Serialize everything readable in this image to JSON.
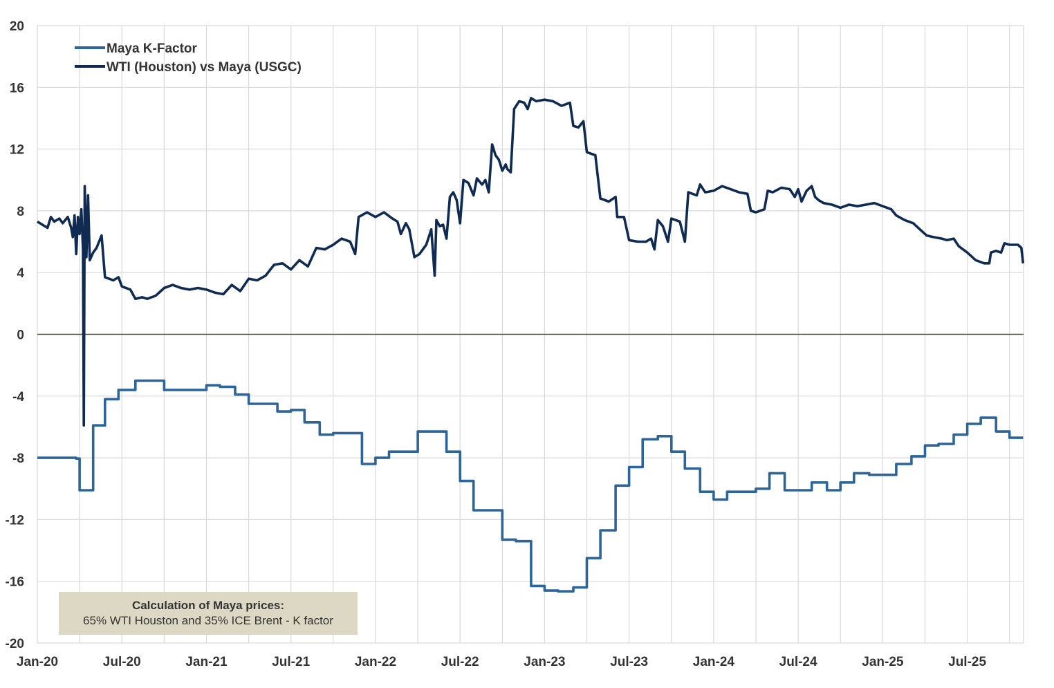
{
  "colors": {
    "k_factor": "#2e6599",
    "wti_maya": "#0f2b52",
    "grid": "#d9d9d9",
    "zero_line": "#5a4a3a",
    "note_bg": "#ddd8c4",
    "text": "#333333"
  },
  "note": {
    "title": "Calculation of Maya prices:",
    "body": "65% WTI Houston and 35% ICE Brent - K factor"
  },
  "chart_data": {
    "type": "line",
    "title": "",
    "xlabel": "",
    "ylabel": "",
    "ylim": [
      -20,
      20
    ],
    "y_ticks": [
      20,
      16,
      12,
      8,
      4,
      0,
      -4,
      -8,
      -12,
      -16,
      -20
    ],
    "x_range": [
      2020.0,
      2025.833
    ],
    "x_tick_values": [
      2020.0,
      2020.5,
      2021.0,
      2021.5,
      2022.0,
      2022.5,
      2023.0,
      2023.5,
      2024.0,
      2024.5,
      2025.0,
      2025.5
    ],
    "x_tick_labels": [
      "Jan-20",
      "Jul-20",
      "Jan-21",
      "Jul-21",
      "Jan-22",
      "Jul-22",
      "Jan-23",
      "Jul-23",
      "Jan-24",
      "Jul-24",
      "Jan-25",
      "Jul-25"
    ],
    "legend": {
      "position": "top-left",
      "entries": [
        "Maya K-Factor",
        "WTI (Houston) vs Maya (USGC)"
      ]
    },
    "series": [
      {
        "name": "Maya K-Factor",
        "step": true,
        "points": [
          [
            2020.0,
            -8.0
          ],
          [
            2020.23,
            -8.05
          ],
          [
            2020.25,
            -10.1
          ],
          [
            2020.33,
            -5.9
          ],
          [
            2020.4,
            -4.2
          ],
          [
            2020.48,
            -3.6
          ],
          [
            2020.58,
            -3.0
          ],
          [
            2020.75,
            -3.6
          ],
          [
            2021.0,
            -3.3
          ],
          [
            2021.08,
            -3.4
          ],
          [
            2021.17,
            -3.9
          ],
          [
            2021.25,
            -4.5
          ],
          [
            2021.42,
            -5.0
          ],
          [
            2021.5,
            -4.9
          ],
          [
            2021.58,
            -5.7
          ],
          [
            2021.67,
            -6.5
          ],
          [
            2021.75,
            -6.4
          ],
          [
            2021.92,
            -8.4
          ],
          [
            2022.0,
            -8.0
          ],
          [
            2022.08,
            -7.6
          ],
          [
            2022.25,
            -6.3
          ],
          [
            2022.42,
            -7.6
          ],
          [
            2022.5,
            -9.5
          ],
          [
            2022.58,
            -11.4
          ],
          [
            2022.75,
            -13.3
          ],
          [
            2022.83,
            -13.4
          ],
          [
            2022.92,
            -16.3
          ],
          [
            2023.0,
            -16.6
          ],
          [
            2023.08,
            -16.65
          ],
          [
            2023.17,
            -16.4
          ],
          [
            2023.25,
            -14.5
          ],
          [
            2023.33,
            -12.7
          ],
          [
            2023.42,
            -9.8
          ],
          [
            2023.5,
            -8.6
          ],
          [
            2023.58,
            -6.8
          ],
          [
            2023.67,
            -6.6
          ],
          [
            2023.75,
            -7.6
          ],
          [
            2023.83,
            -8.7
          ],
          [
            2023.92,
            -10.2
          ],
          [
            2024.0,
            -10.7
          ],
          [
            2024.08,
            -10.2
          ],
          [
            2024.25,
            -10.0
          ],
          [
            2024.33,
            -9.0
          ],
          [
            2024.42,
            -10.1
          ],
          [
            2024.58,
            -9.6
          ],
          [
            2024.67,
            -10.1
          ],
          [
            2024.75,
            -9.6
          ],
          [
            2024.83,
            -9.0
          ],
          [
            2024.92,
            -9.1
          ],
          [
            2025.08,
            -8.4
          ],
          [
            2025.17,
            -7.9
          ],
          [
            2025.25,
            -7.2
          ],
          [
            2025.33,
            -7.1
          ],
          [
            2025.42,
            -6.5
          ],
          [
            2025.5,
            -5.8
          ],
          [
            2025.58,
            -5.4
          ],
          [
            2025.67,
            -6.3
          ],
          [
            2025.75,
            -6.7
          ],
          [
            2025.83,
            -6.7
          ]
        ]
      },
      {
        "name": "WTI (Houston) vs Maya (USGC)",
        "step": false,
        "points": [
          [
            2020.0,
            7.3
          ],
          [
            2020.03,
            7.1
          ],
          [
            2020.06,
            6.9
          ],
          [
            2020.08,
            7.6
          ],
          [
            2020.1,
            7.3
          ],
          [
            2020.13,
            7.5
          ],
          [
            2020.15,
            7.2
          ],
          [
            2020.18,
            7.6
          ],
          [
            2020.2,
            6.9
          ],
          [
            2020.21,
            6.3
          ],
          [
            2020.22,
            7.7
          ],
          [
            2020.23,
            5.2
          ],
          [
            2020.24,
            7.6
          ],
          [
            2020.25,
            6.5
          ],
          [
            2020.26,
            8.1
          ],
          [
            2020.27,
            5.5
          ],
          [
            2020.275,
            -5.9
          ],
          [
            2020.28,
            9.6
          ],
          [
            2020.29,
            5.0
          ],
          [
            2020.3,
            9.0
          ],
          [
            2020.31,
            4.8
          ],
          [
            2020.33,
            5.3
          ],
          [
            2020.35,
            5.6
          ],
          [
            2020.38,
            6.4
          ],
          [
            2020.4,
            3.7
          ],
          [
            2020.45,
            3.5
          ],
          [
            2020.48,
            3.7
          ],
          [
            2020.5,
            3.1
          ],
          [
            2020.55,
            2.9
          ],
          [
            2020.58,
            2.3
          ],
          [
            2020.62,
            2.4
          ],
          [
            2020.65,
            2.3
          ],
          [
            2020.7,
            2.5
          ],
          [
            2020.75,
            3.0
          ],
          [
            2020.8,
            3.2
          ],
          [
            2020.85,
            3.0
          ],
          [
            2020.9,
            2.9
          ],
          [
            2020.95,
            3.0
          ],
          [
            2021.0,
            2.9
          ],
          [
            2021.05,
            2.7
          ],
          [
            2021.1,
            2.6
          ],
          [
            2021.15,
            3.2
          ],
          [
            2021.2,
            2.8
          ],
          [
            2021.25,
            3.6
          ],
          [
            2021.3,
            3.5
          ],
          [
            2021.35,
            3.8
          ],
          [
            2021.4,
            4.5
          ],
          [
            2021.45,
            4.6
          ],
          [
            2021.5,
            4.2
          ],
          [
            2021.55,
            4.8
          ],
          [
            2021.6,
            4.4
          ],
          [
            2021.65,
            5.6
          ],
          [
            2021.7,
            5.5
          ],
          [
            2021.75,
            5.8
          ],
          [
            2021.8,
            6.2
          ],
          [
            2021.85,
            6.0
          ],
          [
            2021.88,
            5.2
          ],
          [
            2021.9,
            7.6
          ],
          [
            2021.95,
            7.9
          ],
          [
            2022.0,
            7.6
          ],
          [
            2022.05,
            7.9
          ],
          [
            2022.1,
            7.5
          ],
          [
            2022.13,
            7.3
          ],
          [
            2022.15,
            6.5
          ],
          [
            2022.18,
            7.2
          ],
          [
            2022.2,
            6.8
          ],
          [
            2022.23,
            5.0
          ],
          [
            2022.26,
            5.2
          ],
          [
            2022.3,
            5.8
          ],
          [
            2022.33,
            6.8
          ],
          [
            2022.35,
            3.8
          ],
          [
            2022.36,
            7.4
          ],
          [
            2022.38,
            7.0
          ],
          [
            2022.4,
            7.1
          ],
          [
            2022.42,
            6.2
          ],
          [
            2022.44,
            8.9
          ],
          [
            2022.46,
            9.2
          ],
          [
            2022.48,
            8.7
          ],
          [
            2022.5,
            7.2
          ],
          [
            2022.52,
            10.0
          ],
          [
            2022.55,
            9.8
          ],
          [
            2022.58,
            9.0
          ],
          [
            2022.6,
            10.1
          ],
          [
            2022.63,
            9.7
          ],
          [
            2022.65,
            10.0
          ],
          [
            2022.67,
            9.2
          ],
          [
            2022.69,
            12.3
          ],
          [
            2022.71,
            11.6
          ],
          [
            2022.73,
            11.3
          ],
          [
            2022.75,
            10.6
          ],
          [
            2022.77,
            11.0
          ],
          [
            2022.78,
            10.7
          ],
          [
            2022.8,
            10.5
          ],
          [
            2022.82,
            14.6
          ],
          [
            2022.85,
            15.1
          ],
          [
            2022.88,
            15.0
          ],
          [
            2022.9,
            14.6
          ],
          [
            2022.92,
            15.3
          ],
          [
            2022.95,
            15.1
          ],
          [
            2023.0,
            15.2
          ],
          [
            2023.05,
            15.1
          ],
          [
            2023.1,
            14.8
          ],
          [
            2023.15,
            15.0
          ],
          [
            2023.17,
            13.5
          ],
          [
            2023.2,
            13.4
          ],
          [
            2023.23,
            13.8
          ],
          [
            2023.25,
            11.8
          ],
          [
            2023.3,
            11.6
          ],
          [
            2023.33,
            8.8
          ],
          [
            2023.38,
            8.6
          ],
          [
            2023.42,
            8.9
          ],
          [
            2023.43,
            7.6
          ],
          [
            2023.47,
            7.6
          ],
          [
            2023.5,
            6.1
          ],
          [
            2023.55,
            6.0
          ],
          [
            2023.6,
            6.0
          ],
          [
            2023.63,
            6.2
          ],
          [
            2023.65,
            5.5
          ],
          [
            2023.67,
            7.4
          ],
          [
            2023.7,
            7.0
          ],
          [
            2023.73,
            6.0
          ],
          [
            2023.75,
            7.5
          ],
          [
            2023.8,
            7.3
          ],
          [
            2023.83,
            6.0
          ],
          [
            2023.85,
            9.2
          ],
          [
            2023.9,
            9.0
          ],
          [
            2023.92,
            9.7
          ],
          [
            2023.95,
            9.2
          ],
          [
            2024.0,
            9.3
          ],
          [
            2024.05,
            9.6
          ],
          [
            2024.1,
            9.4
          ],
          [
            2024.15,
            9.2
          ],
          [
            2024.2,
            9.1
          ],
          [
            2024.22,
            8.0
          ],
          [
            2024.25,
            7.9
          ],
          [
            2024.3,
            8.1
          ],
          [
            2024.32,
            9.3
          ],
          [
            2024.35,
            9.2
          ],
          [
            2024.4,
            9.5
          ],
          [
            2024.45,
            9.4
          ],
          [
            2024.48,
            8.9
          ],
          [
            2024.5,
            9.4
          ],
          [
            2024.52,
            8.6
          ],
          [
            2024.55,
            9.3
          ],
          [
            2024.58,
            9.6
          ],
          [
            2024.6,
            8.9
          ],
          [
            2024.62,
            8.7
          ],
          [
            2024.65,
            8.5
          ],
          [
            2024.7,
            8.4
          ],
          [
            2024.75,
            8.2
          ],
          [
            2024.8,
            8.4
          ],
          [
            2024.85,
            8.3
          ],
          [
            2024.9,
            8.4
          ],
          [
            2024.95,
            8.5
          ],
          [
            2025.0,
            8.3
          ],
          [
            2025.05,
            8.1
          ],
          [
            2025.08,
            7.7
          ],
          [
            2025.13,
            7.4
          ],
          [
            2025.18,
            7.2
          ],
          [
            2025.22,
            6.8
          ],
          [
            2025.26,
            6.4
          ],
          [
            2025.3,
            6.3
          ],
          [
            2025.35,
            6.2
          ],
          [
            2025.38,
            6.1
          ],
          [
            2025.42,
            6.2
          ],
          [
            2025.45,
            5.7
          ],
          [
            2025.5,
            5.3
          ],
          [
            2025.55,
            4.8
          ],
          [
            2025.6,
            4.6
          ],
          [
            2025.63,
            4.6
          ],
          [
            2025.64,
            5.3
          ],
          [
            2025.67,
            5.4
          ],
          [
            2025.7,
            5.3
          ],
          [
            2025.72,
            5.9
          ],
          [
            2025.75,
            5.8
          ],
          [
            2025.8,
            5.8
          ],
          [
            2025.82,
            5.6
          ],
          [
            2025.83,
            4.6
          ]
        ]
      }
    ]
  }
}
